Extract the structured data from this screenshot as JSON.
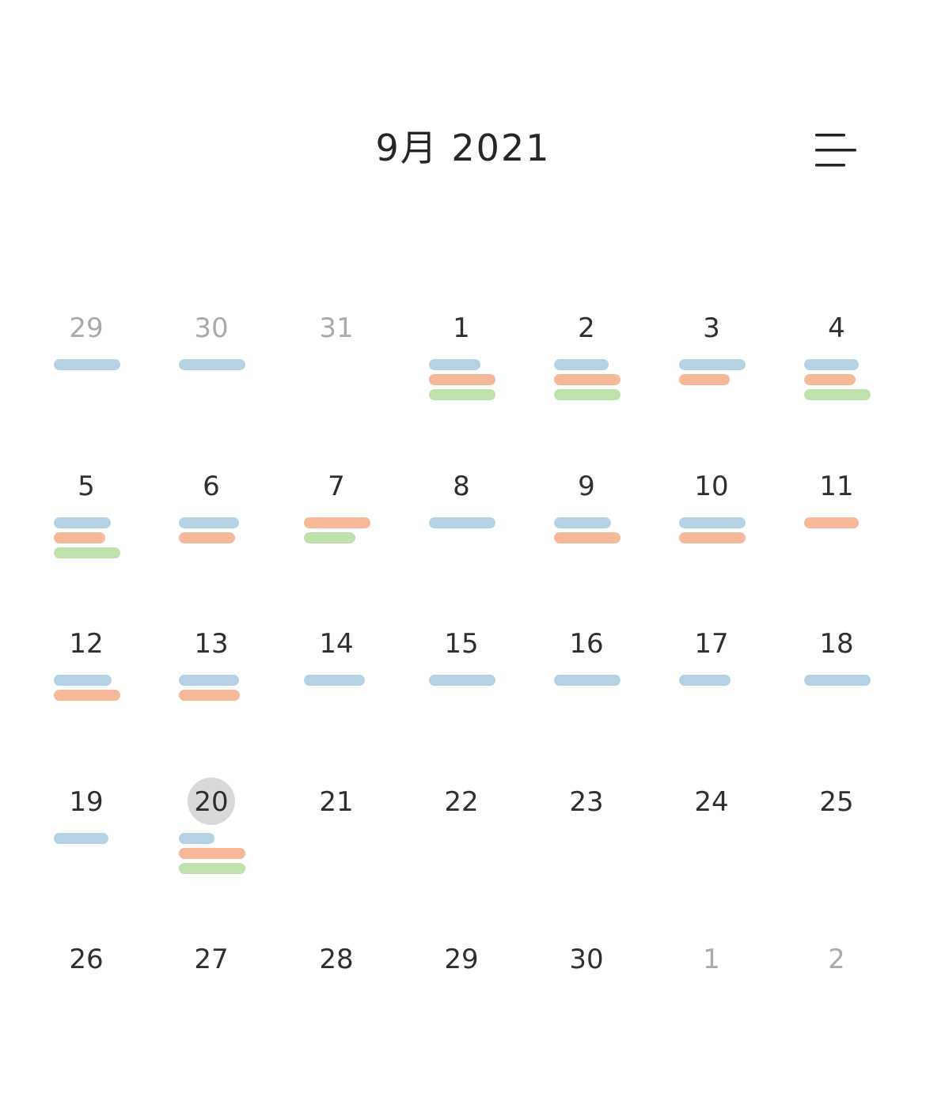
{
  "header": {
    "title": "9月 2021",
    "menu_icon": "menu-icon"
  },
  "colors": {
    "blue": "#b5d2e5",
    "orange": "#f5b898",
    "green": "#bfe2ad",
    "today_circle": "#d9d9d9",
    "other_month_text": "#aaaaaa"
  },
  "days": [
    {
      "label": "29",
      "other": true,
      "bars": [
        [
          "blue",
          0.98
        ]
      ]
    },
    {
      "label": "30",
      "other": true,
      "bars": [
        [
          "blue",
          0.98
        ]
      ]
    },
    {
      "label": "31",
      "other": true,
      "bars": []
    },
    {
      "label": "1",
      "bars": [
        [
          "blue",
          0.76
        ],
        [
          "orange",
          0.98
        ],
        [
          "green",
          0.98
        ]
      ]
    },
    {
      "label": "2",
      "bars": [
        [
          "blue",
          0.8
        ],
        [
          "orange",
          0.98
        ],
        [
          "green",
          0.98
        ]
      ]
    },
    {
      "label": "3",
      "bars": [
        [
          "blue",
          0.98
        ],
        [
          "orange",
          0.74
        ]
      ]
    },
    {
      "label": "4",
      "bars": [
        [
          "blue",
          0.8
        ],
        [
          "orange",
          0.75
        ],
        [
          "green",
          0.98
        ]
      ]
    },
    {
      "label": "5",
      "bars": [
        [
          "blue",
          0.84
        ],
        [
          "orange",
          0.76
        ],
        [
          "green",
          0.98
        ]
      ]
    },
    {
      "label": "6",
      "bars": [
        [
          "blue",
          0.88
        ],
        [
          "orange",
          0.82
        ]
      ]
    },
    {
      "label": "7",
      "bars": [
        [
          "orange",
          0.98
        ],
        [
          "green",
          0.76
        ]
      ]
    },
    {
      "label": "8",
      "bars": [
        [
          "blue",
          0.98
        ]
      ]
    },
    {
      "label": "9",
      "bars": [
        [
          "blue",
          0.84
        ],
        [
          "orange",
          0.98
        ]
      ]
    },
    {
      "label": "10",
      "bars": [
        [
          "blue",
          0.98
        ],
        [
          "orange",
          0.98
        ]
      ]
    },
    {
      "label": "11",
      "bars": [
        [
          "orange",
          0.8
        ]
      ]
    },
    {
      "label": "12",
      "bars": [
        [
          "blue",
          0.85
        ],
        [
          "orange",
          0.98
        ]
      ]
    },
    {
      "label": "13",
      "bars": [
        [
          "blue",
          0.88
        ],
        [
          "orange",
          0.9
        ]
      ]
    },
    {
      "label": "14",
      "bars": [
        [
          "blue",
          0.9
        ]
      ]
    },
    {
      "label": "15",
      "bars": [
        [
          "blue",
          0.98
        ]
      ]
    },
    {
      "label": "16",
      "bars": [
        [
          "blue",
          0.98
        ]
      ]
    },
    {
      "label": "17",
      "bars": [
        [
          "blue",
          0.75
        ]
      ]
    },
    {
      "label": "18",
      "bars": [
        [
          "blue",
          0.98
        ]
      ]
    },
    {
      "label": "19",
      "bars": [
        [
          "blue",
          0.8
        ]
      ]
    },
    {
      "label": "20",
      "today": true,
      "bars": [
        [
          "blue",
          0.52
        ],
        [
          "orange",
          0.98
        ],
        [
          "green",
          0.98
        ]
      ]
    },
    {
      "label": "21",
      "bars": []
    },
    {
      "label": "22",
      "bars": []
    },
    {
      "label": "23",
      "bars": []
    },
    {
      "label": "24",
      "bars": []
    },
    {
      "label": "25",
      "bars": []
    },
    {
      "label": "26",
      "bars": []
    },
    {
      "label": "27",
      "bars": []
    },
    {
      "label": "28",
      "bars": []
    },
    {
      "label": "29",
      "bars": []
    },
    {
      "label": "30",
      "bars": []
    },
    {
      "label": "1",
      "other": true,
      "bars": []
    },
    {
      "label": "2",
      "other": true,
      "bars": []
    }
  ]
}
